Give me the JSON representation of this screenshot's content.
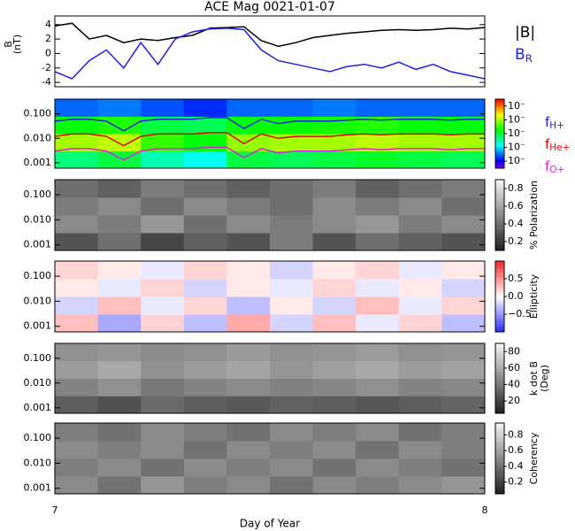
{
  "chart_data": [
    {
      "type": "line",
      "title": "ACE Mag 0021-01-07",
      "xlabel": "Day of Year",
      "ylabel": "B",
      "ylabel_unit": "(nT)",
      "xlim": [
        7,
        8
      ],
      "xticks": [
        7,
        8
      ],
      "ylim": [
        -4.6,
        5.2
      ],
      "yticks": [
        -4,
        -2,
        0,
        2,
        4
      ],
      "x": [
        7,
        7.04,
        7.08,
        7.12,
        7.16,
        7.2,
        7.24,
        7.28,
        7.32,
        7.36,
        7.4,
        7.44,
        7.48,
        7.52,
        7.56,
        7.6,
        7.64,
        7.68,
        7.72,
        7.76,
        7.8,
        7.84,
        7.88,
        7.92,
        7.96,
        8
      ],
      "series": [
        {
          "name": "|B|",
          "color": "#000000",
          "values": [
            3.8,
            4.2,
            2.0,
            2.5,
            1.5,
            2.0,
            1.8,
            2.2,
            2.5,
            3.5,
            3.6,
            3.7,
            1.8,
            1.0,
            1.5,
            2.2,
            2.5,
            2.8,
            3.0,
            3.2,
            3.3,
            3.2,
            3.3,
            3.5,
            3.4,
            3.6
          ]
        },
        {
          "name": "B",
          "name_sub": "R",
          "color": "#2020e0",
          "values": [
            -2.5,
            -3.5,
            -1.0,
            0.5,
            -2.0,
            1.5,
            -1.5,
            2.0,
            3.0,
            3.4,
            3.5,
            3.3,
            0.5,
            -1.0,
            -1.5,
            -2.0,
            -2.5,
            -1.8,
            -1.5,
            -2.0,
            -1.2,
            -2.2,
            -1.5,
            -2.5,
            -3.0,
            -3.5
          ]
        }
      ]
    },
    {
      "type": "heatmap",
      "ylog": true,
      "ylim": [
        0.0006,
        0.4
      ],
      "xlim": [
        7,
        8
      ],
      "yticks": [
        {
          "value": 0.001,
          "label": "0.001"
        },
        {
          "value": 0.01,
          "label": "0.010"
        },
        {
          "value": 0.1,
          "label": "0.100"
        }
      ],
      "colormap": "rainbow",
      "clim": [
        0,
        1
      ],
      "cticks": [
        {
          "value": 0.1,
          "label": "10⁻"
        },
        {
          "value": 0.3,
          "label": "10⁻"
        },
        {
          "value": 0.5,
          "label": "10⁻"
        },
        {
          "value": 0.7,
          "label": "10⁻"
        },
        {
          "value": 0.9,
          "label": "10⁻"
        }
      ],
      "z": [
        [
          0.45,
          0.5,
          0.4,
          0.35,
          0.5,
          0.48,
          0.5,
          0.52,
          0.5,
          0.48
        ],
        [
          0.7,
          0.72,
          0.6,
          0.55,
          0.68,
          0.7,
          0.7,
          0.72,
          0.7,
          0.7
        ],
        [
          0.55,
          0.58,
          0.5,
          0.48,
          0.55,
          0.56,
          0.57,
          0.58,
          0.56,
          0.55
        ],
        [
          0.2,
          0.22,
          0.18,
          0.15,
          0.2,
          0.2,
          0.22,
          0.2,
          0.2,
          0.2
        ]
      ],
      "x": [
        7,
        7.04,
        7.08,
        7.12,
        7.16,
        7.2,
        7.24,
        7.28,
        7.32,
        7.36,
        7.4,
        7.44,
        7.48,
        7.52,
        7.56,
        7.6,
        7.64,
        7.68,
        7.72,
        7.76,
        7.8,
        7.84,
        7.88,
        7.92,
        7.96,
        8
      ],
      "series": [
        {
          "name": "f",
          "name_sub": "H+",
          "color": "#2020e0",
          "values": [
            0.05,
            0.06,
            0.06,
            0.05,
            0.02,
            0.05,
            0.06,
            0.06,
            0.06,
            0.07,
            0.07,
            0.025,
            0.06,
            0.04,
            0.05,
            0.05,
            0.05,
            0.055,
            0.06,
            0.055,
            0.06,
            0.06,
            0.06,
            0.055,
            0.06,
            0.06
          ]
        },
        {
          "name": "f",
          "name_sub": "He+",
          "color": "#e00000",
          "values": [
            0.012,
            0.015,
            0.015,
            0.012,
            0.005,
            0.012,
            0.015,
            0.015,
            0.015,
            0.017,
            0.017,
            0.006,
            0.015,
            0.01,
            0.012,
            0.012,
            0.012,
            0.014,
            0.015,
            0.014,
            0.015,
            0.015,
            0.015,
            0.014,
            0.015,
            0.015
          ]
        },
        {
          "name": "f",
          "name_sub": "O+",
          "color": "#e020e0",
          "values": [
            0.003,
            0.0038,
            0.0038,
            0.003,
            0.0013,
            0.003,
            0.0038,
            0.0038,
            0.0038,
            0.0043,
            0.0043,
            0.0016,
            0.0038,
            0.0025,
            0.003,
            0.003,
            0.003,
            0.0034,
            0.0038,
            0.0034,
            0.0038,
            0.0038,
            0.0038,
            0.0034,
            0.0038,
            0.0038
          ]
        }
      ]
    },
    {
      "type": "heatmap",
      "ylog": true,
      "ylim": [
        0.0006,
        0.4
      ],
      "xlim": [
        7,
        8
      ],
      "yticks": [
        {
          "value": 0.001,
          "label": "0.001"
        },
        {
          "value": 0.01,
          "label": "0.010"
        },
        {
          "value": 0.1,
          "label": "0.100"
        }
      ],
      "colormap": "gray",
      "clim": [
        0.1,
        0.9
      ],
      "clabel": "% Polarization",
      "cticks": [
        0.2,
        0.4,
        0.6,
        0.8
      ],
      "z": [
        [
          0.3,
          0.4,
          0.25,
          0.35,
          0.3,
          0.45,
          0.3,
          0.4,
          0.35,
          0.3
        ],
        [
          0.5,
          0.45,
          0.55,
          0.4,
          0.5,
          0.45,
          0.5,
          0.55,
          0.45,
          0.5
        ],
        [
          0.45,
          0.5,
          0.4,
          0.5,
          0.45,
          0.4,
          0.5,
          0.45,
          0.5,
          0.4
        ],
        [
          0.4,
          0.35,
          0.45,
          0.4,
          0.35,
          0.4,
          0.45,
          0.35,
          0.4,
          0.45
        ]
      ]
    },
    {
      "type": "heatmap",
      "ylog": true,
      "ylim": [
        0.0006,
        0.4
      ],
      "xlim": [
        7,
        8
      ],
      "yticks": [
        {
          "value": 0.001,
          "label": "0.001"
        },
        {
          "value": 0.01,
          "label": "0.010"
        },
        {
          "value": 0.1,
          "label": "0.100"
        }
      ],
      "colormap": "bwr",
      "clim": [
        -1,
        1
      ],
      "clabel": "Ellipticity",
      "cticks": [
        {
          "value": -0.5,
          "label": "−0.5"
        },
        {
          "value": 0,
          "label": "0.0"
        },
        {
          "value": 0.5,
          "label": "0.5"
        }
      ],
      "z": [
        [
          0.3,
          -0.4,
          0.2,
          -0.3,
          0.4,
          -0.2,
          0.3,
          -0.1,
          0.2,
          -0.3
        ],
        [
          -0.2,
          0.3,
          -0.1,
          0.2,
          -0.3,
          0.1,
          -0.2,
          0.3,
          -0.1,
          0.2
        ],
        [
          0.1,
          -0.1,
          0.2,
          -0.2,
          0.1,
          -0.1,
          0.2,
          -0.1,
          0.1,
          -0.2
        ],
        [
          0.2,
          0.1,
          -0.1,
          0.2,
          0.1,
          -0.2,
          0.1,
          0.2,
          -0.1,
          0.1
        ]
      ]
    },
    {
      "type": "heatmap",
      "ylog": true,
      "ylim": [
        0.0006,
        0.4
      ],
      "xlim": [
        7,
        8
      ],
      "yticks": [
        {
          "value": 0.001,
          "label": "0.001"
        },
        {
          "value": 0.01,
          "label": "0.010"
        },
        {
          "value": 0.1,
          "label": "0.100"
        }
      ],
      "colormap": "gray",
      "clim": [
        5,
        90
      ],
      "clabel": "k dot B",
      "clabel_unit": "(Deg)",
      "cticks": [
        20,
        40,
        60,
        80
      ],
      "z": [
        [
          30,
          25,
          35,
          30,
          28,
          32,
          30,
          27,
          30,
          33
        ],
        [
          45,
          50,
          40,
          45,
          48,
          44,
          46,
          50,
          45,
          47
        ],
        [
          55,
          60,
          50,
          55,
          58,
          52,
          56,
          60,
          55,
          57
        ],
        [
          50,
          52,
          48,
          50,
          54,
          50,
          52,
          55,
          50,
          52
        ]
      ]
    },
    {
      "type": "heatmap",
      "ylog": true,
      "ylim": [
        0.0006,
        0.4
      ],
      "xlim": [
        7,
        8
      ],
      "yticks": [
        {
          "value": 0.001,
          "label": "0.001"
        },
        {
          "value": 0.01,
          "label": "0.010"
        },
        {
          "value": 0.1,
          "label": "0.100"
        }
      ],
      "colormap": "gray",
      "clim": [
        0.05,
        0.95
      ],
      "clabel": "Coherency",
      "cticks": [
        0.2,
        0.4,
        0.6,
        0.8
      ],
      "z": [
        [
          0.5,
          0.4,
          0.55,
          0.45,
          0.5,
          0.4,
          0.5,
          0.45,
          0.5,
          0.55
        ],
        [
          0.45,
          0.5,
          0.4,
          0.5,
          0.45,
          0.5,
          0.4,
          0.5,
          0.45,
          0.4
        ],
        [
          0.5,
          0.45,
          0.5,
          0.4,
          0.5,
          0.45,
          0.5,
          0.4,
          0.5,
          0.45
        ],
        [
          0.45,
          0.4,
          0.5,
          0.45,
          0.4,
          0.5,
          0.45,
          0.5,
          0.4,
          0.45
        ]
      ]
    }
  ]
}
